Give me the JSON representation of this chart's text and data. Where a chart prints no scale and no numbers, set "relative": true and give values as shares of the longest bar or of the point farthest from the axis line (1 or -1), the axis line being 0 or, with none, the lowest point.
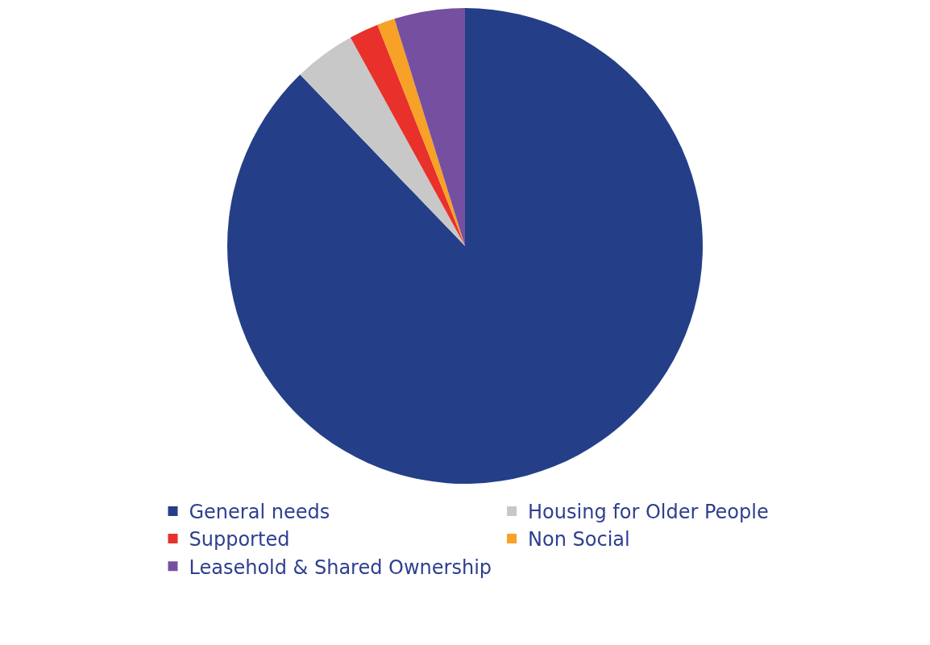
{
  "chart_data": {
    "type": "pie",
    "relative": true,
    "categories": [
      "General needs",
      "Housing for Older People",
      "Supported",
      "Non Social",
      "Leasehold & Shared Ownership"
    ],
    "values": [
      87.8,
      4.2,
      2.0,
      1.2,
      4.8
    ],
    "colors": [
      "#243f88",
      "#c8c8c8",
      "#e8312a",
      "#f7a126",
      "#7650a0"
    ],
    "legend": "bottom"
  }
}
